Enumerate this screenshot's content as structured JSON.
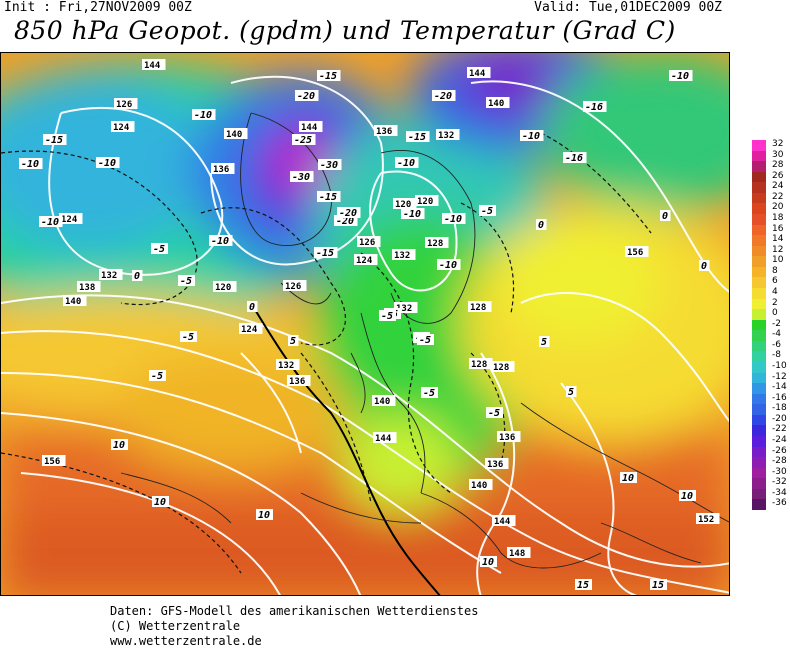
{
  "header": {
    "init": "Init : Fri,27NOV2009 00Z",
    "valid": "Valid: Tue,01DEC2009 00Z",
    "title": "850 hPa Geopot. (gpdm) und Temperatur (Grad C)"
  },
  "legend": {
    "values": [
      "32",
      "30",
      "28",
      "26",
      "24",
      "22",
      "20",
      "18",
      "16",
      "14",
      "12",
      "10",
      "8",
      "6",
      "4",
      "2",
      "0",
      "-2",
      "-4",
      "-6",
      "-8",
      "-10",
      "-12",
      "-14",
      "-16",
      "-18",
      "-20",
      "-22",
      "-24",
      "-26",
      "-28",
      "-30",
      "-32",
      "-34",
      "-36"
    ],
    "colors": [
      "#ff33cc",
      "#e0209f",
      "#b41e6e",
      "#a0281e",
      "#b4321e",
      "#c83c1e",
      "#dc461e",
      "#e65028",
      "#ef6428",
      "#f07828",
      "#f08c28",
      "#f0a028",
      "#f5b428",
      "#f5c832",
      "#f5dc32",
      "#f0f032",
      "#c8f032",
      "#28d228",
      "#32d250",
      "#32d27d",
      "#32d2a0",
      "#32c8c8",
      "#32b4dc",
      "#3296e6",
      "#3278e6",
      "#3264e6",
      "#3246e6",
      "#3c28dc",
      "#5a1edc",
      "#781ec8",
      "#8c1eb4",
      "#a01ea0",
      "#8c1e8c",
      "#781e78",
      "#5a1464"
    ]
  },
  "map": {
    "geopotential_labels": [
      "144",
      "126",
      "124",
      "140",
      "136",
      "144",
      "140",
      "144",
      "136",
      "132",
      "120",
      "128",
      "156",
      "124",
      "132",
      "138",
      "140",
      "120",
      "124",
      "132",
      "136",
      "128",
      "126",
      "132",
      "120",
      "132",
      "128",
      "128",
      "140",
      "144",
      "136",
      "140",
      "144",
      "148",
      "152",
      "156",
      "126",
      "124",
      "136"
    ],
    "temperature_labels": [
      "-15",
      "-20",
      "-10",
      "-16",
      "-10",
      "-15",
      "-10",
      "-10",
      "-5",
      "-10",
      "-10",
      "-5",
      "-30",
      "-25",
      "-30",
      "-20",
      "-15",
      "-20",
      "-15",
      "-10",
      "-5",
      "-5",
      "-5",
      "-5",
      "0",
      "0",
      "0",
      "5",
      "5",
      "5",
      "10",
      "10",
      "10",
      "10",
      "10",
      "10",
      "15",
      "15",
      "-5",
      "0",
      "-10",
      "-5",
      "-10",
      "-5",
      "-10",
      "-5",
      "-16",
      "-15",
      "-20",
      "0",
      "-5",
      "-10"
    ]
  },
  "footer": {
    "line1": "Daten: GFS-Modell des amerikanischen Wetterdienstes",
    "line2": "(C) Wetterzentrale",
    "line3": "www.wetterzentrale.de"
  }
}
